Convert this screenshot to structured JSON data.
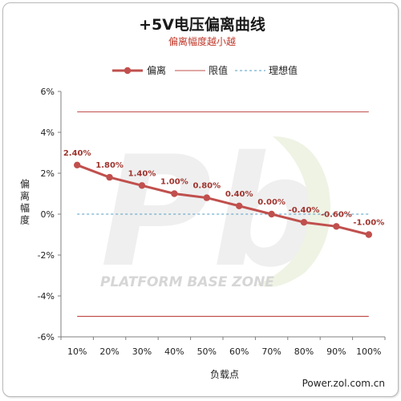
{
  "chart_data": {
    "type": "line",
    "title": "+5V电压偏离曲线",
    "subtitle": "偏离幅度越小越",
    "xlabel": "负载点",
    "ylabel": "偏离幅度",
    "categories": [
      "10%",
      "20%",
      "30%",
      "40%",
      "50%",
      "60%",
      "70%",
      "80%",
      "90%",
      "100%"
    ],
    "ylim": [
      -6,
      6
    ],
    "yticks": [
      -6,
      -4,
      -2,
      0,
      2,
      4,
      6
    ],
    "ytick_labels": [
      "-6%",
      "-4%",
      "-2%",
      "0%",
      "2%",
      "4%",
      "6%"
    ],
    "legend_position": "top",
    "grid": false,
    "series": [
      {
        "name": "偏离",
        "values": [
          2.4,
          1.8,
          1.4,
          1.0,
          0.8,
          0.4,
          0.0,
          -0.4,
          -0.6,
          -1.0
        ],
        "labels": [
          "2.40%",
          "1.80%",
          "1.40%",
          "1.00%",
          "0.80%",
          "0.40%",
          "0.00%",
          "-0.40%",
          "-0.60%",
          "-1.00%"
        ],
        "color": "#c0504d",
        "style": "line-marker"
      },
      {
        "name": "限值",
        "upper": 5,
        "lower": -5,
        "color": "#c0504d",
        "style": "line"
      },
      {
        "name": "理想值",
        "value": 0,
        "color": "#4f9ec4",
        "style": "dashed"
      }
    ]
  },
  "watermark": {
    "logo": "Pb",
    "text": "PLATFORM BASE ZONE"
  },
  "credit": "Power.zol.com.cn"
}
